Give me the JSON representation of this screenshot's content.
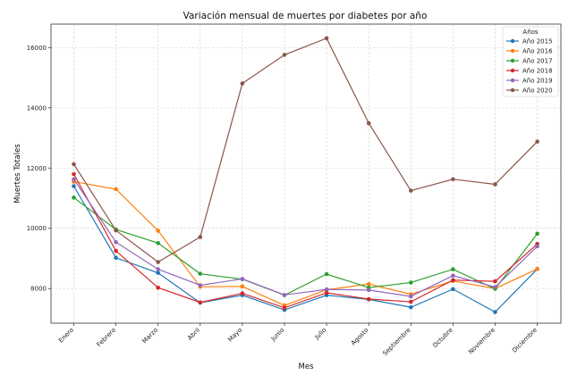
{
  "chart_data": {
    "type": "line",
    "title": "Variación mensual de muertes por diabetes por año",
    "xlabel": "Mes",
    "ylabel": "Muertes Totales",
    "categories": [
      "Enero",
      "Febrero",
      "Marzo",
      "Abril",
      "Mayo",
      "Junio",
      "Julio",
      "Agosto",
      "Septiembre",
      "Octubre",
      "Noviembre",
      "Diciembre"
    ],
    "ylim": [
      6850,
      16780
    ],
    "yticks": [
      8000,
      10000,
      12000,
      14000,
      16000
    ],
    "grid": true,
    "legend": {
      "title": "Años",
      "placement": "top-right"
    },
    "series": [
      {
        "name": "Año 2015",
        "color": "#1f77b4",
        "values": [
          11400,
          9020,
          8520,
          7530,
          7780,
          7290,
          7780,
          7640,
          7380,
          7980,
          7220,
          8650
        ]
      },
      {
        "name": "Año 2016",
        "color": "#ff7f0e",
        "values": [
          11550,
          11300,
          9920,
          8060,
          8070,
          7440,
          7960,
          8150,
          7810,
          8250,
          8000,
          8650
        ]
      },
      {
        "name": "Año 2017",
        "color": "#2ca02c",
        "values": [
          11020,
          9960,
          9510,
          8490,
          8310,
          7780,
          8480,
          8030,
          8200,
          8640,
          7990,
          9820
        ]
      },
      {
        "name": "Año 2018",
        "color": "#d62728",
        "values": [
          11800,
          9250,
          8030,
          7540,
          7840,
          7360,
          7860,
          7650,
          7560,
          8280,
          8240,
          9480
        ]
      },
      {
        "name": "Año 2019",
        "color": "#9467bd",
        "values": [
          11630,
          9540,
          8640,
          8110,
          8320,
          7790,
          7970,
          7950,
          7740,
          8430,
          8050,
          9400
        ]
      },
      {
        "name": "Año 2020",
        "color": "#8c564b",
        "values": [
          12130,
          9930,
          8880,
          9710,
          14810,
          15760,
          16310,
          13490,
          11250,
          11630,
          11460,
          12880
        ]
      }
    ]
  }
}
